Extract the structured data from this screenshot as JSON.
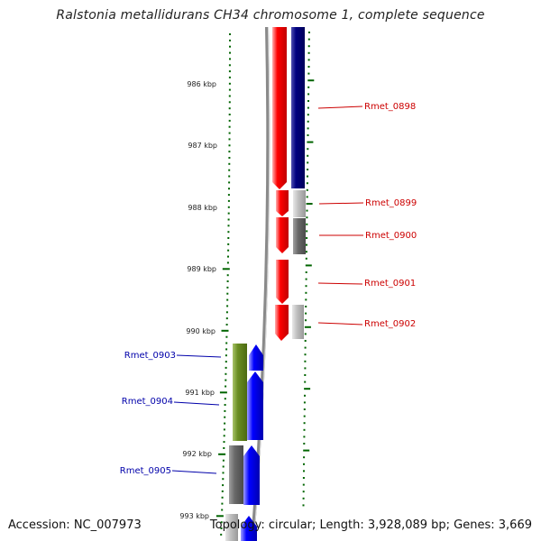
{
  "title": "Ralstonia metallidurans CH34 chromosome 1, complete sequence",
  "footer": {
    "accession": "Accession: NC_007973",
    "topology": "Topology: circular; Length: 3,928,089 bp; Genes: 3,669"
  },
  "colors": {
    "forward_gene": "#ff0000",
    "reverse_gene": "#0000ff",
    "gene_navy": "#000080",
    "gene_olive": "#6b8e23",
    "gene_gray_light": "#c0c0c0",
    "gene_gray_dark": "#696969",
    "tick": "#006400",
    "backbone": "#808080",
    "label_forward": "#cc0000",
    "label_reverse": "#0000aa"
  },
  "ruler": {
    "labels": [
      "986 kbp",
      "987 kbp",
      "988 kbp",
      "989 kbp",
      "990 kbp",
      "991 kbp",
      "992 kbp",
      "993 kbp"
    ]
  },
  "genes": [
    {
      "name": "Rmet_0898",
      "side": "right"
    },
    {
      "name": "Rmet_0899",
      "side": "right"
    },
    {
      "name": "Rmet_0900",
      "side": "right"
    },
    {
      "name": "Rmet_0901",
      "side": "right"
    },
    {
      "name": "Rmet_0902",
      "side": "right"
    },
    {
      "name": "Rmet_0903",
      "side": "left"
    },
    {
      "name": "Rmet_0904",
      "side": "left"
    },
    {
      "name": "Rmet_0905",
      "side": "left"
    }
  ]
}
